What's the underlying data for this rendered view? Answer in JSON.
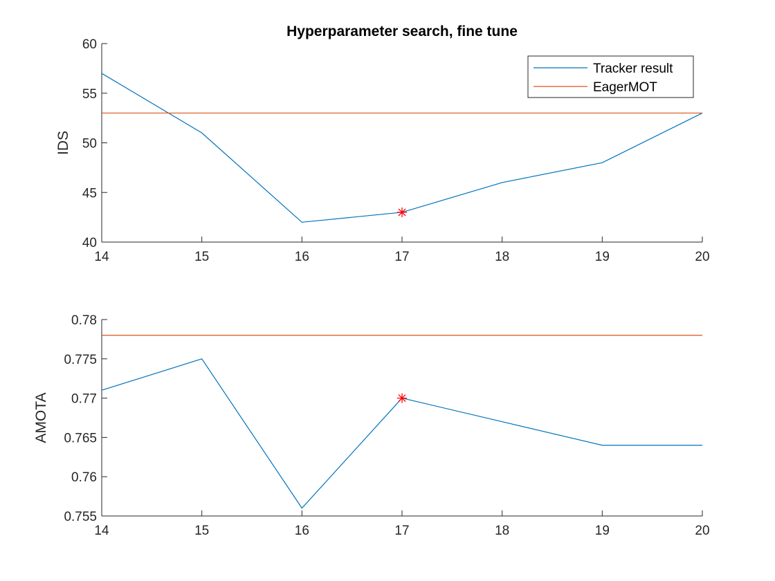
{
  "chart_data": [
    {
      "type": "line",
      "title": "Hyperparameter search, fine tune",
      "xlabel": "",
      "ylabel": "IDS",
      "xlim": [
        14,
        20
      ],
      "ylim": [
        40,
        60
      ],
      "xticks": [
        "14",
        "15",
        "16",
        "17",
        "18",
        "19",
        "20"
      ],
      "yticks": [
        "40",
        "45",
        "50",
        "55",
        "60"
      ],
      "grid": false,
      "legend": "top-right",
      "series": [
        {
          "name": "Tracker result",
          "color": "#0072BD",
          "x": [
            14,
            15,
            16,
            17,
            18,
            19,
            20
          ],
          "values": [
            57,
            51,
            42,
            43,
            46,
            48,
            53
          ]
        },
        {
          "name": "EagerMOT",
          "color": "#D95319",
          "x": [
            14,
            20
          ],
          "values": [
            53,
            53
          ]
        }
      ],
      "marker": {
        "x": 17,
        "y": 43,
        "color": "#FF0000",
        "symbol": "asterisk"
      }
    },
    {
      "type": "line",
      "title": "",
      "xlabel": "",
      "ylabel": "AMOTA",
      "xlim": [
        14,
        20
      ],
      "ylim": [
        0.755,
        0.78
      ],
      "xticks": [
        "14",
        "15",
        "16",
        "17",
        "18",
        "19",
        "20"
      ],
      "yticks": [
        "0.755",
        "0.76",
        "0.765",
        "0.77",
        "0.775",
        "0.78"
      ],
      "grid": false,
      "series": [
        {
          "color": "#0072BD",
          "x": [
            14,
            15,
            16,
            17,
            18,
            19,
            20
          ],
          "values": [
            0.771,
            0.775,
            0.756,
            0.77,
            0.767,
            0.764,
            0.764
          ]
        },
        {
          "color": "#D95319",
          "x": [
            14,
            20
          ],
          "values": [
            0.778,
            0.778
          ]
        }
      ],
      "marker": {
        "x": 17,
        "y": 0.77,
        "color": "#FF0000",
        "symbol": "asterisk"
      }
    }
  ]
}
